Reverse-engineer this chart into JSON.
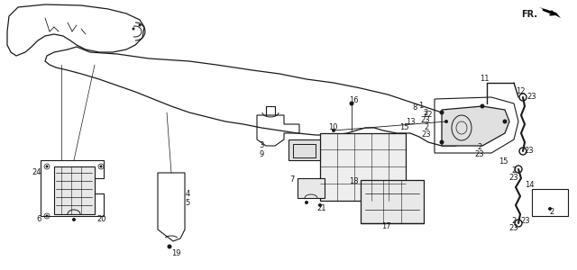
{
  "bg_color": "#ffffff",
  "line_color": "#1a1a1a",
  "fig_width": 6.4,
  "fig_height": 3.0,
  "dpi": 100
}
